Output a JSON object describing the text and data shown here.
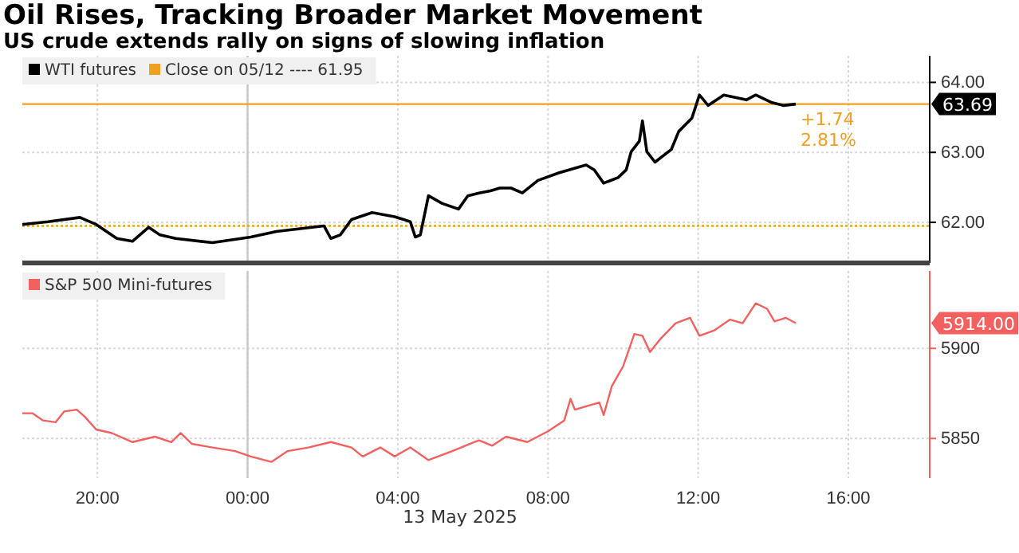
{
  "chart_data": [
    {
      "type": "line",
      "title": "Oil Rises, Tracking Broader Market Movement",
      "subtitle": "US crude extends rally on signs of slowing inflation",
      "tick_labels": "y",
      "legend": "top left",
      "grid": true,
      "xlim": [
        "2025-05-12T18:00",
        "2025-05-13T18:10"
      ],
      "xticks": [
        {
          "value": "2025-05-12T20:00",
          "label": null
        },
        {
          "value": "2025-05-13T00:00",
          "label": null
        },
        {
          "value": "2025-05-13T04:00",
          "label": null
        },
        {
          "value": "2025-05-13T08:00",
          "label": null
        },
        {
          "value": "2025-05-13T12:00",
          "label": null
        },
        {
          "value": "2025-05-13T16:00",
          "label": null
        }
      ],
      "ylim": [
        61.42,
        64.38
      ],
      "yticks": [
        {
          "value": 62,
          "label": "62.00"
        },
        {
          "value": 63,
          "label": "63.00"
        },
        {
          "value": 64,
          "label": "64.00"
        }
      ],
      "series": [
        {
          "name": "WTI futures",
          "color": "#000000",
          "x": [
            "2025-05-12T18:00",
            "2025-05-12T18:41",
            "2025-05-12T19:32",
            "2025-05-12T19:58",
            "2025-05-12T20:31",
            "2025-05-12T20:56",
            "2025-05-12T21:22",
            "2025-05-12T21:40",
            "2025-05-12T22:05",
            "2025-05-12T23:04",
            "2025-05-13T00:05",
            "2025-05-13T00:46",
            "2025-05-13T02:02",
            "2025-05-13T02:13",
            "2025-05-13T02:28",
            "2025-05-13T02:46",
            "2025-05-13T03:19",
            "2025-05-13T03:55",
            "2025-05-13T04:20",
            "2025-05-13T04:28",
            "2025-05-13T04:36",
            "2025-05-13T04:49",
            "2025-05-13T05:11",
            "2025-05-13T05:37",
            "2025-05-13T05:52",
            "2025-05-13T06:10",
            "2025-05-13T06:28",
            "2025-05-13T06:43",
            "2025-05-13T07:01",
            "2025-05-13T07:19",
            "2025-05-13T07:44",
            "2025-05-13T08:18",
            "2025-05-13T09:01",
            "2025-05-13T09:14",
            "2025-05-13T09:29",
            "2025-05-13T09:52",
            "2025-05-13T10:05",
            "2025-05-13T10:13",
            "2025-05-13T10:26",
            "2025-05-13T10:31",
            "2025-05-13T10:38",
            "2025-05-13T10:51",
            "2025-05-13T11:17",
            "2025-05-13T11:29",
            "2025-05-13T11:50",
            "2025-05-13T12:02",
            "2025-05-13T12:16",
            "2025-05-13T12:41",
            "2025-05-13T13:17",
            "2025-05-13T13:32",
            "2025-05-13T13:58",
            "2025-05-13T14:16",
            "2025-05-13T14:36"
          ],
          "values": [
            61.97,
            62.01,
            62.07,
            61.97,
            61.77,
            61.73,
            61.93,
            61.82,
            61.77,
            61.71,
            61.79,
            61.87,
            61.95,
            61.77,
            61.82,
            62.04,
            62.14,
            62.08,
            62.01,
            61.79,
            61.82,
            62.38,
            62.27,
            62.19,
            62.38,
            62.42,
            62.45,
            62.49,
            62.49,
            62.42,
            62.6,
            62.71,
            62.82,
            62.75,
            62.56,
            62.64,
            62.75,
            63.01,
            63.16,
            63.45,
            63.01,
            62.86,
            63.04,
            63.3,
            63.49,
            63.82,
            63.67,
            63.82,
            63.75,
            63.82,
            63.71,
            63.67,
            63.69
          ]
        }
      ],
      "ref_lines": [
        {
          "axis": "x",
          "value": "2025-05-13T00:00",
          "color": "#c8c8c8",
          "line_style": "solid"
        },
        {
          "axis": "y",
          "value": 61.95,
          "label": "Close on 05/12 ---- 61.95",
          "color": "#f0a020",
          "line_style": "dotted"
        },
        {
          "axis": "y",
          "value": 63.69,
          "color": "#f0a020",
          "line_style": "solid"
        }
      ],
      "annotations": [
        {
          "text": "63.69",
          "x": "2025-05-13T18:10",
          "y": 63.69
        },
        "+1.74",
        "2.81%"
      ]
    },
    {
      "type": "line",
      "legend": "top left",
      "grid": true,
      "xlabel": "13 May 2025",
      "xlim": [
        "2025-05-12T18:00",
        "2025-05-13T18:10"
      ],
      "xticks": [
        {
          "value": "2025-05-12T20:00",
          "label": "20:00"
        },
        {
          "value": "2025-05-13T00:00",
          "label": "00:00"
        },
        {
          "value": "2025-05-13T04:00",
          "label": "04:00"
        },
        {
          "value": "2025-05-13T08:00",
          "label": "08:00"
        },
        {
          "value": "2025-05-13T12:00",
          "label": "12:00"
        },
        {
          "value": "2025-05-13T16:00",
          "label": "16:00"
        }
      ],
      "ylim": [
        5828,
        5943
      ],
      "yticks": [
        5850,
        5900
      ],
      "series": [
        {
          "name": "S&P 500 Mini-futures",
          "color": "#f26060",
          "x": [
            "2025-05-12T18:00",
            "2025-05-12T18:16",
            "2025-05-12T18:33",
            "2025-05-12T18:53",
            "2025-05-12T19:07",
            "2025-05-12T19:27",
            "2025-05-12T19:40",
            "2025-05-12T19:58",
            "2025-05-12T20:23",
            "2025-05-12T20:56",
            "2025-05-12T21:32",
            "2025-05-12T21:58",
            "2025-05-12T22:13",
            "2025-05-12T22:31",
            "2025-05-12T23:04",
            "2025-05-12T23:40",
            "2025-05-13T00:05",
            "2025-05-13T00:38",
            "2025-05-13T01:04",
            "2025-05-13T01:37",
            "2025-05-13T02:13",
            "2025-05-13T02:46",
            "2025-05-13T03:04",
            "2025-05-13T03:32",
            "2025-05-13T03:55",
            "2025-05-13T04:20",
            "2025-05-13T04:49",
            "2025-05-13T05:27",
            "2025-05-13T06:02",
            "2025-05-13T06:10",
            "2025-05-13T06:31",
            "2025-05-13T06:53",
            "2025-05-13T07:27",
            "2025-05-13T08:00",
            "2025-05-13T08:26",
            "2025-05-13T08:36",
            "2025-05-13T08:43",
            "2025-05-13T09:22",
            "2025-05-13T09:29",
            "2025-05-13T09:42",
            "2025-05-13T10:00",
            "2025-05-13T10:18",
            "2025-05-13T10:31",
            "2025-05-13T10:43",
            "2025-05-13T10:59",
            "2025-05-13T11:24",
            "2025-05-13T11:47",
            "2025-05-13T12:02",
            "2025-05-13T12:26",
            "2025-05-13T12:51",
            "2025-05-13T13:11",
            "2025-05-13T13:32",
            "2025-05-13T13:50",
            "2025-05-13T14:02",
            "2025-05-13T14:20",
            "2025-05-13T14:36"
          ],
          "values": [
            5864,
            5864,
            5860,
            5859,
            5865,
            5866,
            5862,
            5855,
            5853,
            5848,
            5851,
            5848,
            5853,
            5847,
            5845,
            5843,
            5840,
            5837,
            5843,
            5845,
            5848,
            5845,
            5840,
            5845,
            5840,
            5845,
            5838,
            5843,
            5848,
            5849,
            5846,
            5851,
            5848,
            5854,
            5860,
            5872,
            5866,
            5870,
            5863,
            5879,
            5890,
            5908,
            5907,
            5898,
            5905,
            5914,
            5917,
            5907,
            5910,
            5916,
            5914,
            5925,
            5922,
            5915,
            5917,
            5914
          ]
        }
      ],
      "ref_lines": [
        {
          "axis": "x",
          "value": "2025-05-13T00:00",
          "color": "#c8c8c8",
          "line_style": "solid"
        }
      ],
      "annotations": [
        "5914.00"
      ]
    }
  ]
}
